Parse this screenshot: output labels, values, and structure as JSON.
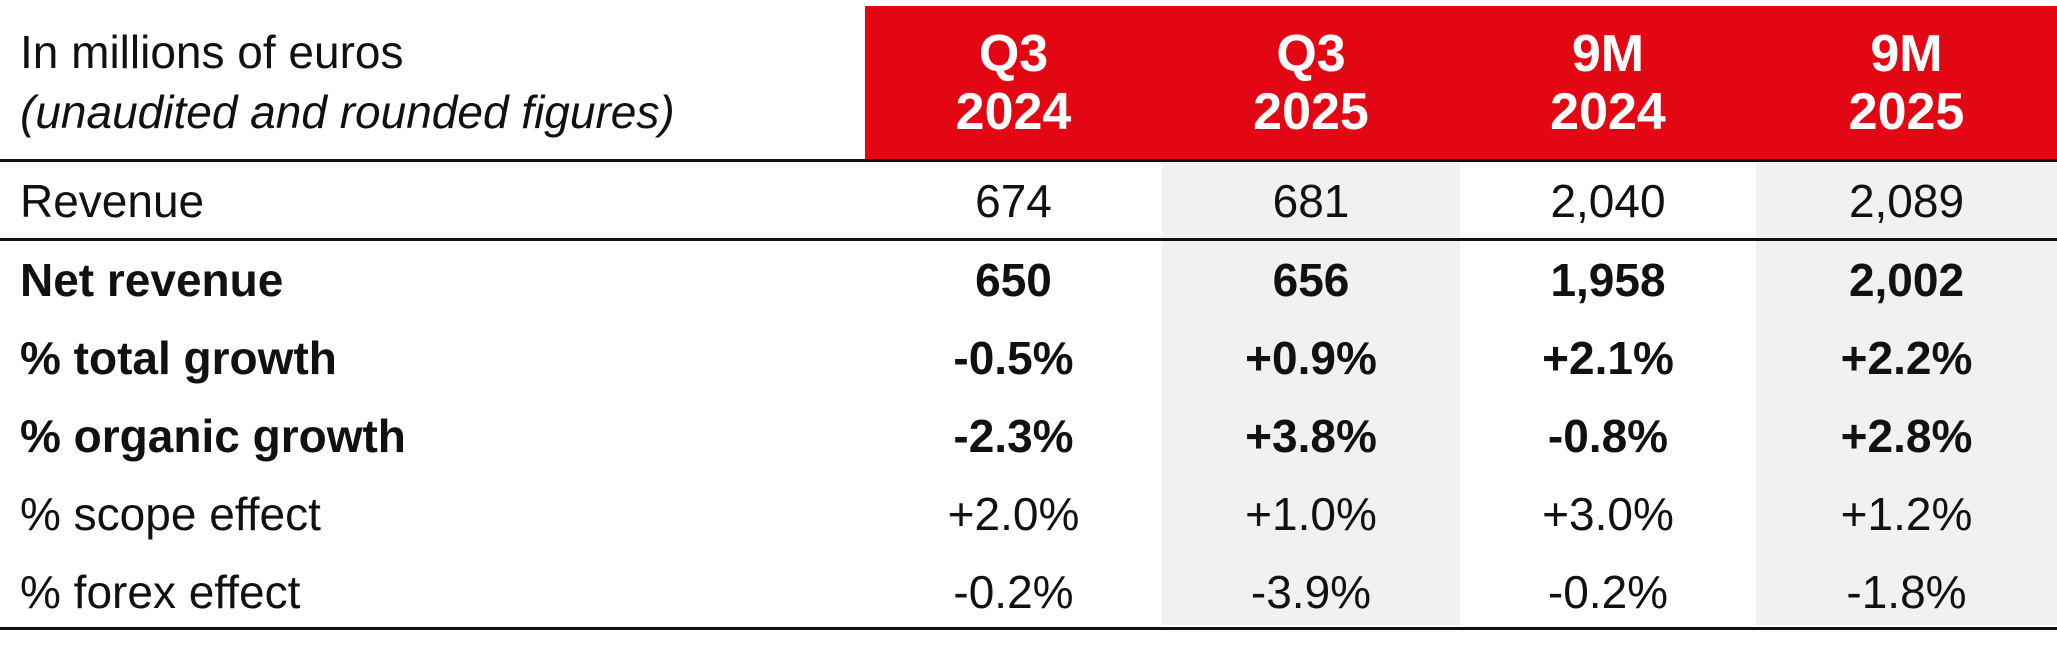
{
  "header": {
    "label_line1": "In millions of euros",
    "label_line2": "(unaudited and rounded figures)",
    "columns": [
      {
        "line1": "Q3",
        "line2": "2024"
      },
      {
        "line1": "Q3",
        "line2": "2025"
      },
      {
        "line1": "9M",
        "line2": "2024"
      },
      {
        "line1": "9M",
        "line2": "2025"
      }
    ]
  },
  "rows": [
    {
      "label": "Revenue",
      "values": [
        "674",
        "681",
        "2,040",
        "2,089"
      ]
    },
    {
      "label": "Net revenue",
      "values": [
        "650",
        "656",
        "1,958",
        "2,002"
      ]
    },
    {
      "label": "% total growth",
      "values": [
        "-0.5%",
        "+0.9%",
        "+2.1%",
        "+2.2%"
      ]
    },
    {
      "label": "% organic growth",
      "values": [
        "-2.3%",
        "+3.8%",
        "-0.8%",
        "+2.8%"
      ]
    },
    {
      "label": "% scope effect",
      "values": [
        "+2.0%",
        "+1.0%",
        "+3.0%",
        "+1.2%"
      ]
    },
    {
      "label": "% forex effect",
      "values": [
        "-0.2%",
        "-3.9%",
        "-0.2%",
        "-1.8%"
      ]
    }
  ],
  "colors": {
    "header_red": "#e30613",
    "shade_grey": "#f1f1f1"
  }
}
